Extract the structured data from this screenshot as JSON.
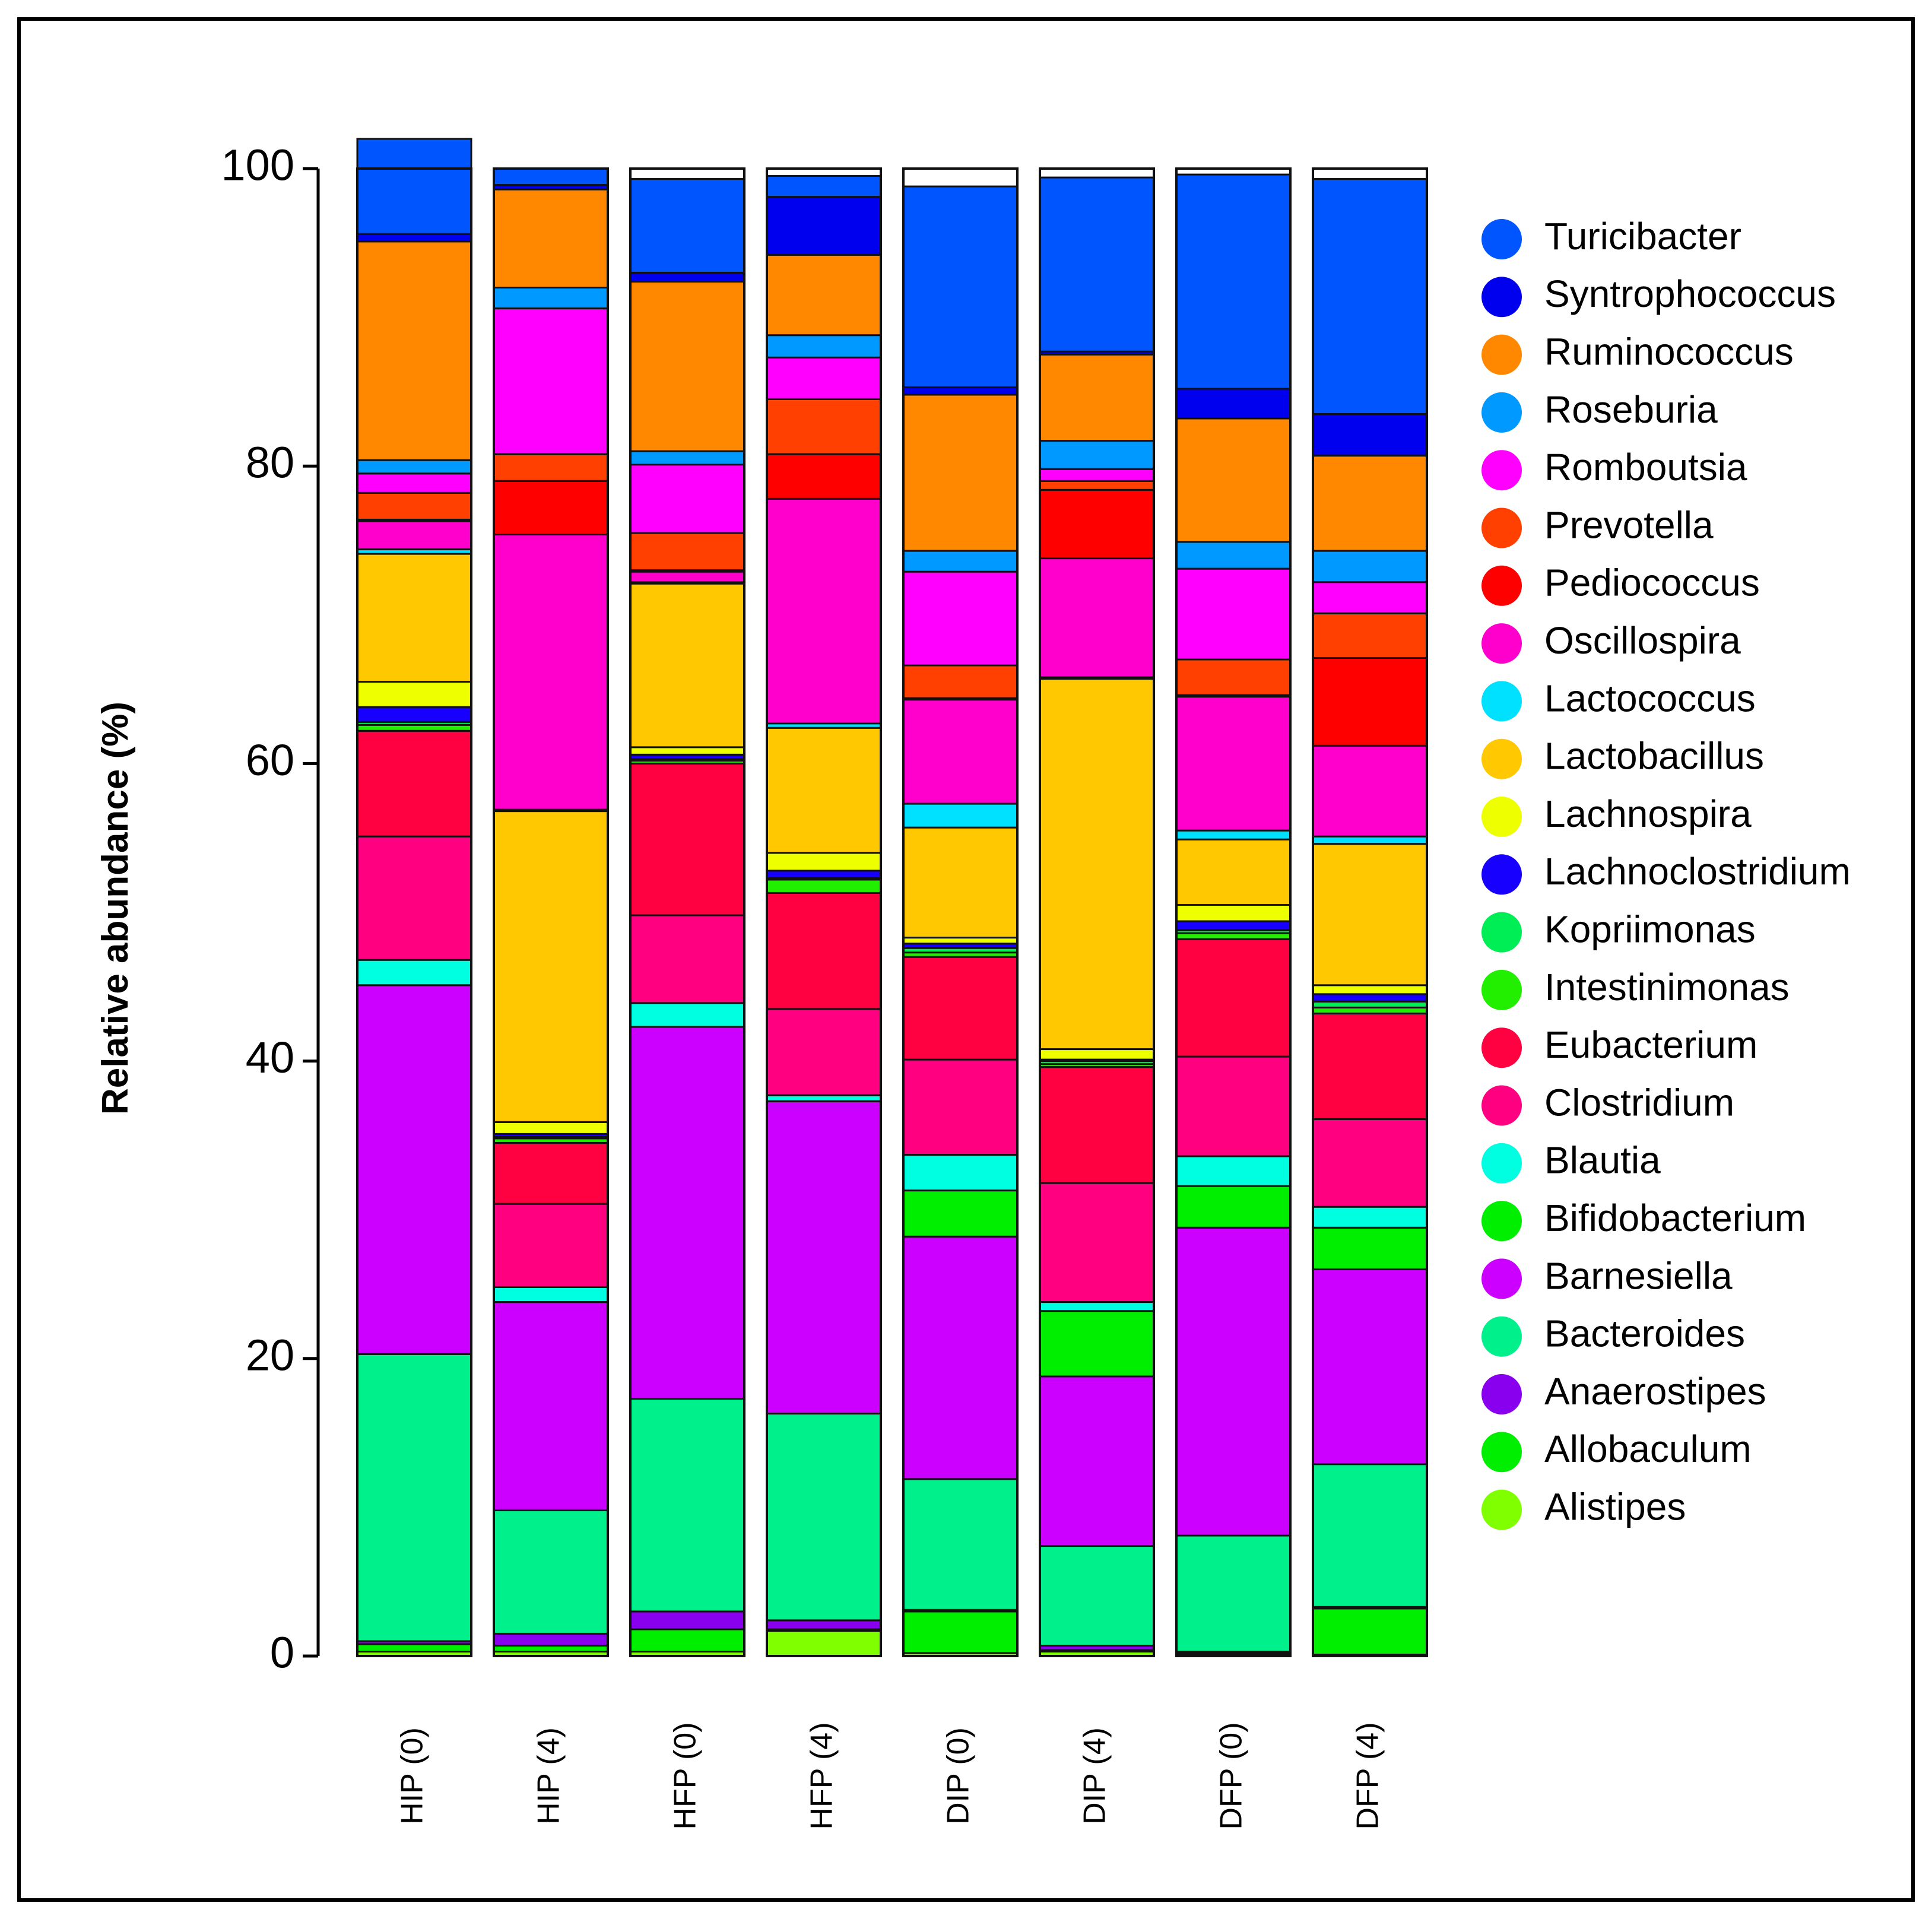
{
  "chart_data": {
    "type": "bar",
    "stacked": true,
    "title": "",
    "xlabel": "",
    "ylabel": "Relative abundance (%)",
    "ylim": [
      0,
      100
    ],
    "yticks": [
      0,
      20,
      40,
      60,
      80,
      100
    ],
    "grid": false,
    "legend_position": "right",
    "categories": [
      "HIP (0)",
      "HIP (4)",
      "HFP (0)",
      "HFP (4)",
      "DIP (0)",
      "DIP (4)",
      "DFP (0)",
      "DFP (4)"
    ],
    "series": [
      {
        "name": "Alistipes",
        "color": "#80ff00",
        "values": [
          0.3,
          0.3,
          0.3,
          1.7,
          0.2,
          0.3,
          0.1,
          0.1
        ]
      },
      {
        "name": "Allobaculum",
        "color": "#00ee00",
        "values": [
          0.5,
          0.4,
          1.5,
          0.1,
          2.8,
          0.1,
          0.1,
          3.1
        ]
      },
      {
        "name": "Anaerostipes",
        "color": "#8800ee",
        "values": [
          0.2,
          0.8,
          1.2,
          0.6,
          0.1,
          0.3,
          0.1,
          0.1
        ]
      },
      {
        "name": "Bacteroides",
        "color": "#00f08c",
        "values": [
          19.3,
          8.3,
          14.3,
          13.9,
          8.8,
          6.7,
          7.8,
          9.6
        ]
      },
      {
        "name": "Barnesiella",
        "color": "#cc00ff",
        "values": [
          24.8,
          14.0,
          25.0,
          21.0,
          16.3,
          11.4,
          20.7,
          13.1
        ]
      },
      {
        "name": "Bifidobacterium",
        "color": "#00ee00",
        "values": [
          0.0,
          0.0,
          0.0,
          0.0,
          3.1,
          4.4,
          2.8,
          2.8
        ]
      },
      {
        "name": "Blautia",
        "color": "#00ffe0",
        "values": [
          1.7,
          1.0,
          1.6,
          0.4,
          2.4,
          0.6,
          2.0,
          1.4
        ]
      },
      {
        "name": "Clostridium",
        "color": "#ff0080",
        "values": [
          8.3,
          5.6,
          5.9,
          5.8,
          6.4,
          8.0,
          6.7,
          5.9
        ]
      },
      {
        "name": "Eubacterium",
        "color": "#ff0040",
        "values": [
          7.1,
          4.1,
          10.2,
          7.8,
          6.9,
          7.8,
          7.9,
          7.1
        ]
      },
      {
        "name": "Intestinimonas",
        "color": "#22ee00",
        "values": [
          0.4,
          0.3,
          0.2,
          0.9,
          0.3,
          0.2,
          0.4,
          0.4
        ]
      },
      {
        "name": "Kopriimonas",
        "color": "#00ee55",
        "values": [
          0.2,
          0.1,
          0.1,
          0.1,
          0.3,
          0.2,
          0.2,
          0.4
        ]
      },
      {
        "name": "Lachnoclostridium",
        "color": "#1800ff",
        "values": [
          1.0,
          0.2,
          0.3,
          0.5,
          0.3,
          0.1,
          0.6,
          0.5
        ]
      },
      {
        "name": "Lachnospira",
        "color": "#eeff00",
        "values": [
          1.7,
          0.8,
          0.5,
          1.2,
          0.4,
          0.7,
          1.1,
          0.6
        ]
      },
      {
        "name": "Lactobacillus",
        "color": "#ffc800",
        "values": [
          8.6,
          20.9,
          11.0,
          8.4,
          7.4,
          24.9,
          4.4,
          9.5
        ]
      },
      {
        "name": "Lactococcus",
        "color": "#00e0ff",
        "values": [
          0.3,
          0.1,
          0.1,
          0.3,
          1.6,
          0.1,
          0.6,
          0.5
        ]
      },
      {
        "name": "Oscillospira",
        "color": "#ff00cc",
        "values": [
          1.9,
          18.5,
          0.7,
          15.1,
          7.0,
          8.0,
          9.0,
          6.1
        ]
      },
      {
        "name": "Pediococcus",
        "color": "#ff0000",
        "values": [
          0.1,
          3.6,
          0.1,
          3.0,
          0.1,
          4.6,
          0.1,
          5.9
        ]
      },
      {
        "name": "Prevotella",
        "color": "#ff4000",
        "values": [
          1.8,
          1.8,
          2.5,
          3.7,
          2.2,
          0.6,
          2.4,
          3.0
        ]
      },
      {
        "name": "Romboutsia",
        "color": "#ff00ff",
        "values": [
          1.3,
          9.8,
          4.6,
          2.8,
          6.3,
          0.8,
          6.1,
          2.1
        ]
      },
      {
        "name": "Roseburia",
        "color": "#0099ff",
        "values": [
          0.9,
          1.4,
          0.9,
          1.5,
          1.4,
          1.9,
          1.8,
          2.1
        ]
      },
      {
        "name": "Ruminococcus",
        "color": "#ff8800",
        "values": [
          14.7,
          6.6,
          11.4,
          5.4,
          10.5,
          5.8,
          8.3,
          6.4
        ]
      },
      {
        "name": "Syntrophococcus",
        "color": "#0000ee",
        "values": [
          0.5,
          0.3,
          0.6,
          3.9,
          0.5,
          0.2,
          2.0,
          2.8
        ]
      },
      {
        "name": "Turicibacter",
        "color": "#0055ff",
        "values": [
          6.4,
          1.1,
          6.3,
          1.4,
          13.5,
          11.7,
          14.4,
          15.8
        ]
      }
    ],
    "legend": [
      {
        "name": "Turicibacter",
        "color": "#0055ff"
      },
      {
        "name": "Syntrophococcus",
        "color": "#0000ee"
      },
      {
        "name": "Ruminococcus",
        "color": "#ff8800"
      },
      {
        "name": "Roseburia",
        "color": "#0099ff"
      },
      {
        "name": "Romboutsia",
        "color": "#ff00ff"
      },
      {
        "name": "Prevotella",
        "color": "#ff4000"
      },
      {
        "name": "Pediococcus",
        "color": "#ff0000"
      },
      {
        "name": "Oscillospira",
        "color": "#ff00cc"
      },
      {
        "name": "Lactococcus",
        "color": "#00e0ff"
      },
      {
        "name": "Lactobacillus",
        "color": "#ffc800"
      },
      {
        "name": "Lachnospira",
        "color": "#eeff00"
      },
      {
        "name": "Lachnoclostridium",
        "color": "#1800ff"
      },
      {
        "name": "Kopriimonas",
        "color": "#00ee55"
      },
      {
        "name": "Intestinimonas",
        "color": "#22ee00"
      },
      {
        "name": "Eubacterium",
        "color": "#ff0040"
      },
      {
        "name": "Clostridium",
        "color": "#ff0080"
      },
      {
        "name": "Blautia",
        "color": "#00ffe0"
      },
      {
        "name": "Bifidobacterium",
        "color": "#00ee00"
      },
      {
        "name": "Barnesiella",
        "color": "#cc00ff"
      },
      {
        "name": "Bacteroides",
        "color": "#00f08c"
      },
      {
        "name": "Anaerostipes",
        "color": "#8800ee"
      },
      {
        "name": "Allobaculum",
        "color": "#00ee00"
      },
      {
        "name": "Alistipes",
        "color": "#80ff00"
      }
    ]
  }
}
